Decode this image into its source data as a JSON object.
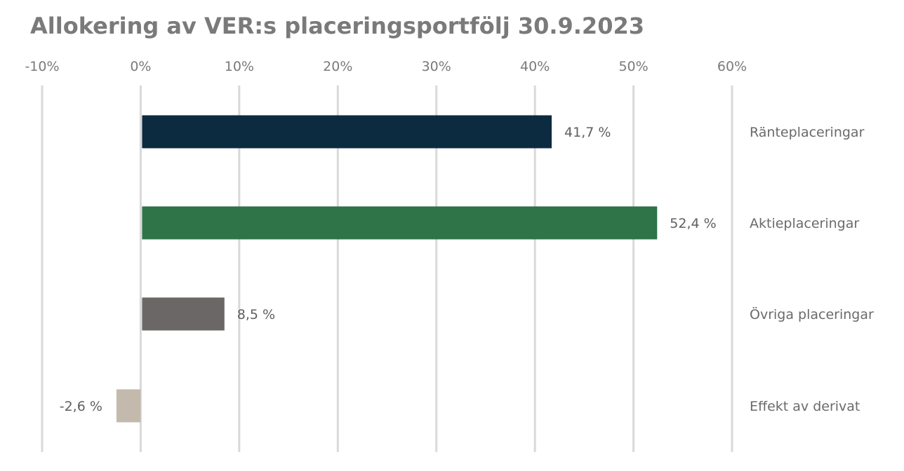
{
  "chart_data": {
    "type": "bar",
    "orientation": "horizontal",
    "title": "Allokering av VER:s placeringsportfölj 30.9.2023",
    "xlim": [
      -10,
      60
    ],
    "ticks": [
      -10,
      0,
      10,
      20,
      30,
      40,
      50,
      60
    ],
    "tick_labels": [
      "-10%",
      "0%",
      "10%",
      "20%",
      "30%",
      "40%",
      "50%",
      "60%"
    ],
    "categories": [
      "Ränteplaceringar",
      "Aktieplaceringar",
      "Övriga placeringar",
      "Effekt av derivat"
    ],
    "values": [
      41.7,
      52.4,
      8.5,
      -2.6
    ],
    "value_labels": [
      "41,7 %",
      "52,4 %",
      "8,5 %",
      "-2,6 %"
    ],
    "colors": [
      "#0c2a40",
      "#2f7349",
      "#6b6766",
      "#c4b9ad"
    ],
    "grid": true,
    "legend": "none",
    "category_label_position": "right"
  }
}
